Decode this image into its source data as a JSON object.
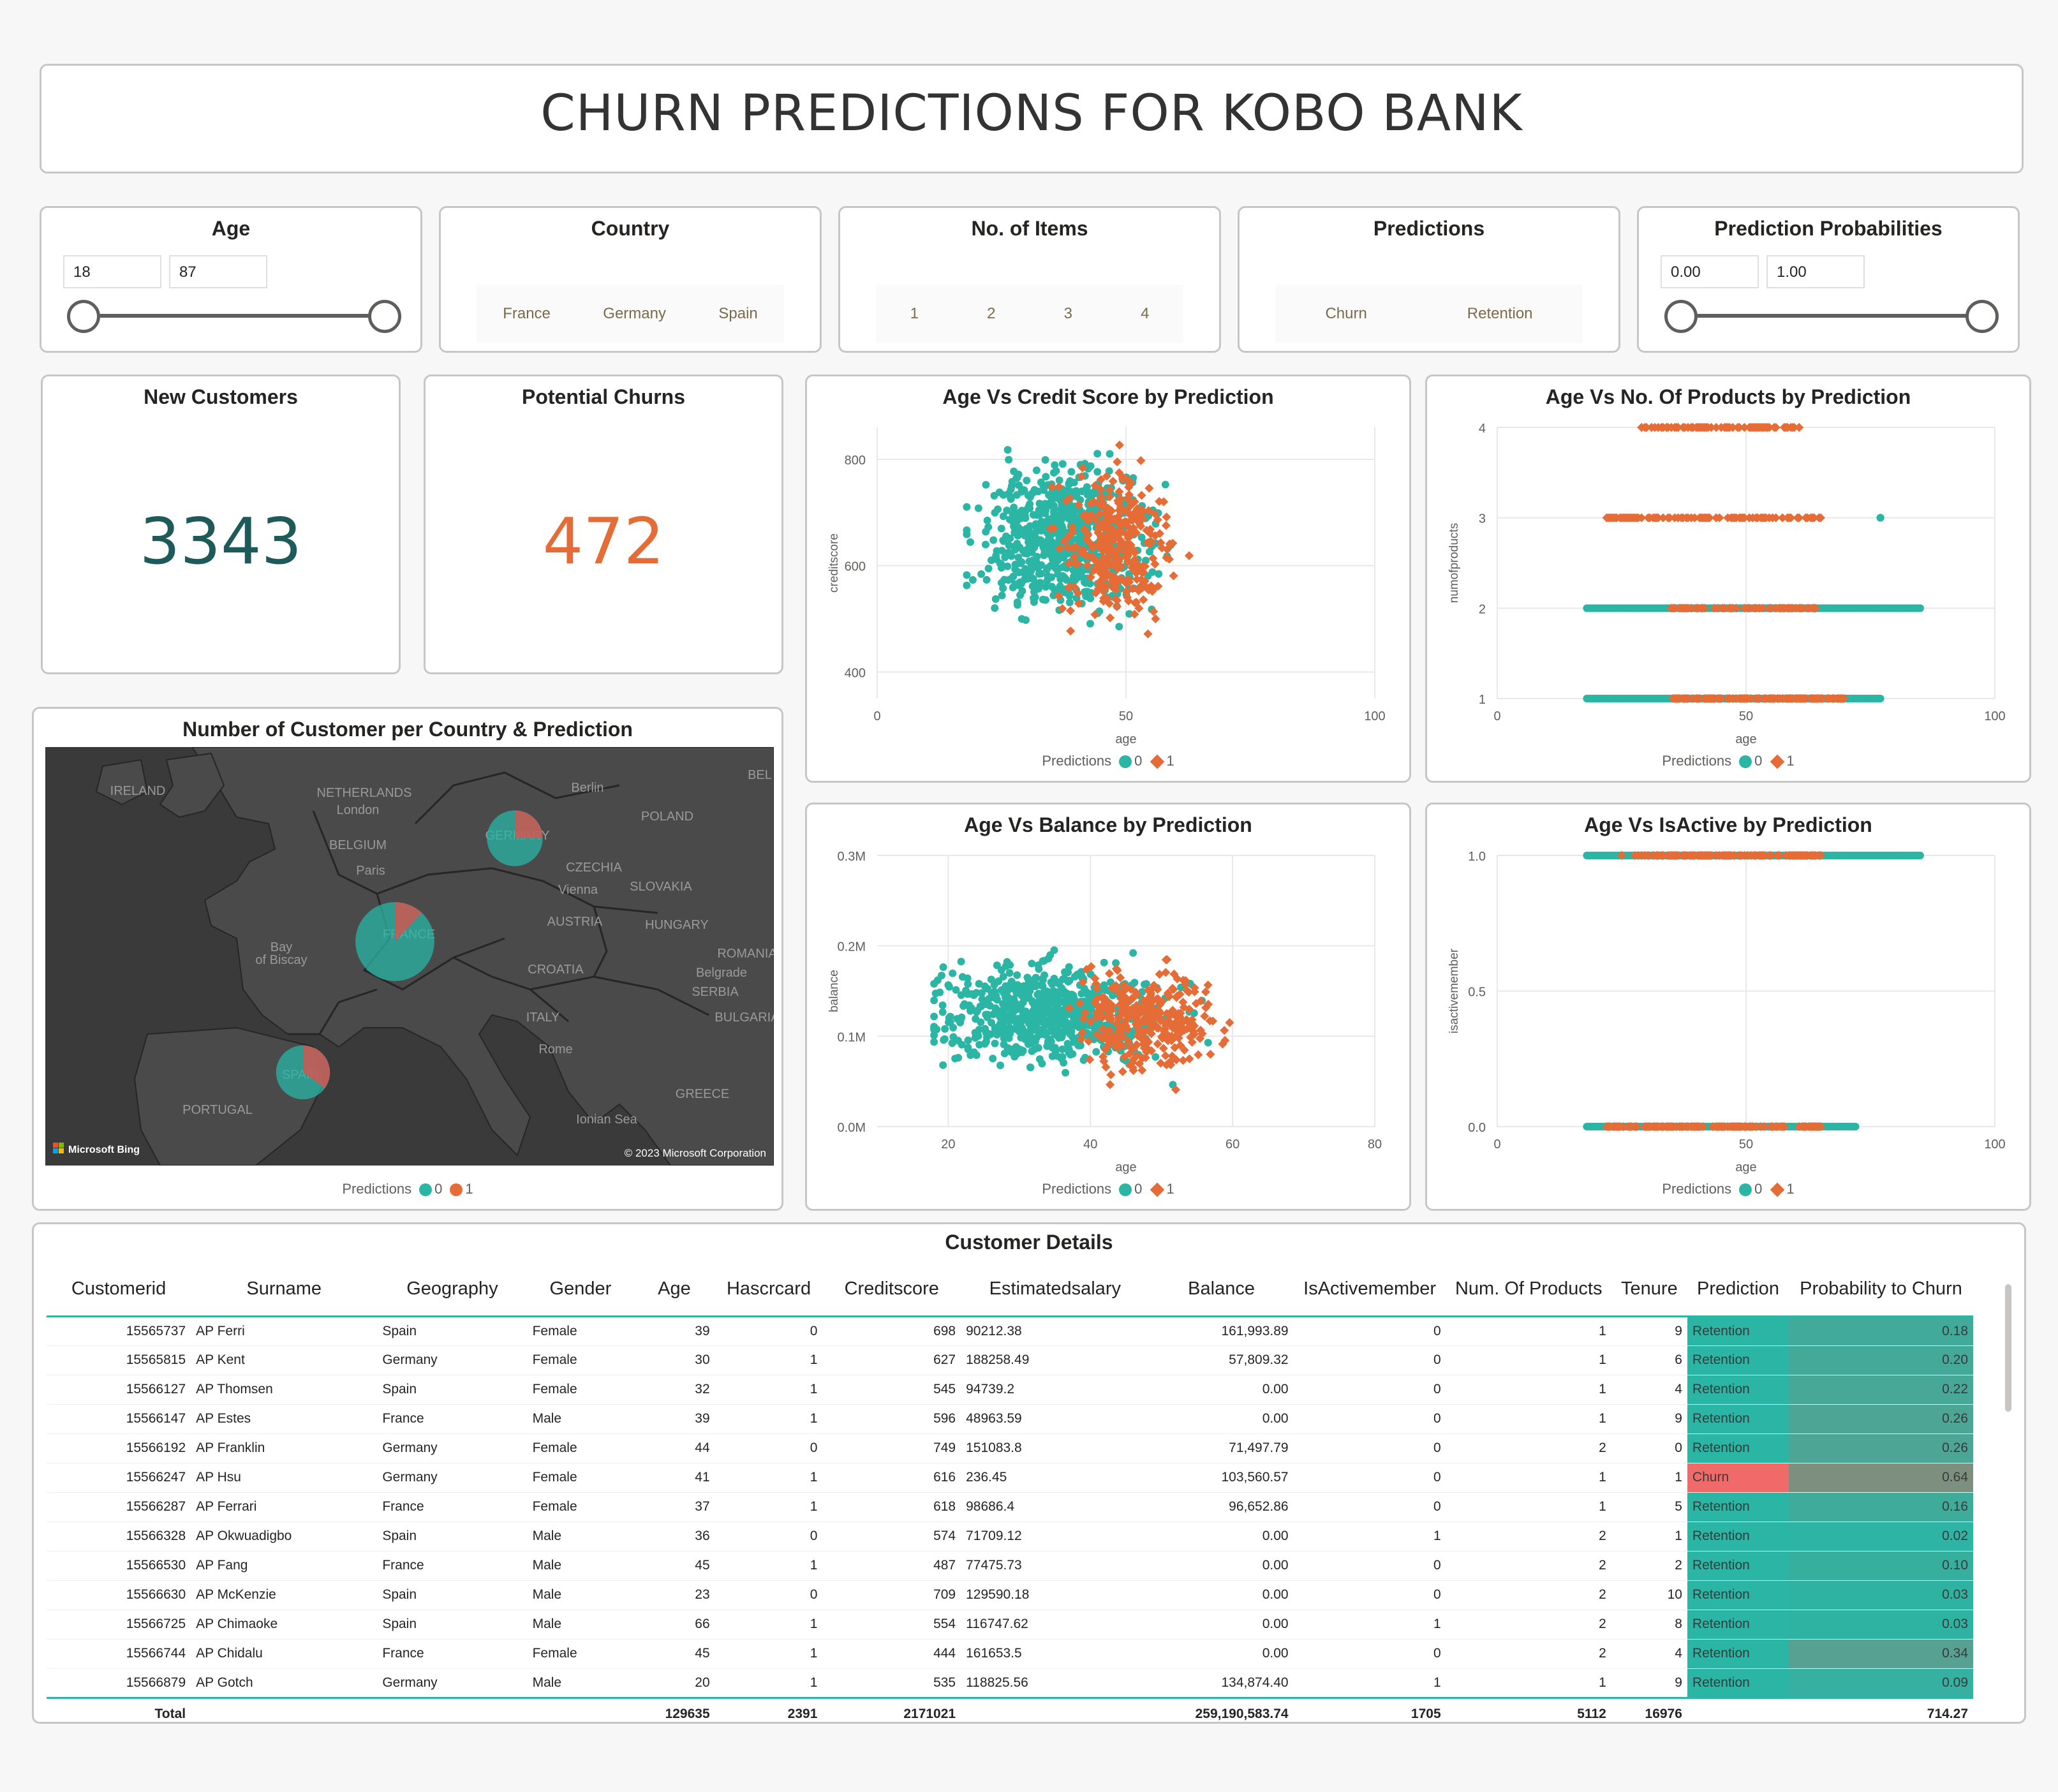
{
  "title": "CHURN PREDICTIONS FOR KOBO BANK",
  "colors": {
    "retention": "#2ab5a5",
    "churn": "#e66c37",
    "accent_dark": "#1f5a5a"
  },
  "slicers": {
    "age": {
      "title": "Age",
      "min": "18",
      "max": "87"
    },
    "country": {
      "title": "Country",
      "options": [
        "France",
        "Germany",
        "Spain"
      ]
    },
    "items": {
      "title": "No. of Items",
      "options": [
        "1",
        "2",
        "3",
        "4"
      ]
    },
    "predictions": {
      "title": "Predictions",
      "options": [
        "Churn",
        "Retention"
      ]
    },
    "probabilities": {
      "title": "Prediction Probabilities",
      "min": "0.00",
      "max": "1.00"
    }
  },
  "kpis": {
    "new_customers": {
      "title": "New Customers",
      "value": "3343"
    },
    "potential_churns": {
      "title": "Potential Churns",
      "value": "472"
    }
  },
  "legend": {
    "title": "Predictions",
    "items": [
      "0",
      "1"
    ]
  },
  "map": {
    "title": "Number of Customer per Country & Prediction",
    "labels": [
      "IRELAND",
      "NETHERLANDS",
      "Berlin",
      "London",
      "BELGIUM",
      "GERMANY",
      "POLAND",
      "Paris",
      "CZECHIA",
      "Vienna",
      "SLOVAKIA",
      "FRANCE",
      "AUSTRIA",
      "HUNGARY",
      "Bay",
      "of Biscay",
      "CROATIA",
      "ROMANIA",
      "Belgrade",
      "SERBIA",
      "ITALY",
      "BULGARIA",
      "Rome",
      "SPAIN",
      "PORTUGAL",
      "GREECE",
      "Ionian Sea",
      "BEL"
    ],
    "bubbles": [
      {
        "country": "France",
        "count": 1700,
        "churn_share": 0.12
      },
      {
        "country": "Germany",
        "count": 850,
        "churn_share": 0.25
      },
      {
        "country": "Spain",
        "count": 793,
        "churn_share": 0.35
      }
    ],
    "brand": "Microsoft Bing",
    "copyright": "© 2023 Microsoft Corporation"
  },
  "chart_data": [
    {
      "type": "scatter",
      "title": "Age Vs Credit Score by Prediction",
      "xlabel": "age",
      "ylabel": "creditscore",
      "xlim": [
        0,
        100
      ],
      "ylim": [
        350,
        860
      ],
      "xticks": [
        "0",
        "50",
        "100"
      ],
      "yticks": [
        "400",
        "600",
        "800"
      ],
      "ytick_values": [
        400,
        600,
        800
      ],
      "series": [
        {
          "name": "0",
          "clusters": [
            {
              "x": [
                18,
                80
              ],
              "y": [
                350,
                850
              ],
              "center": [
                38,
                650
              ],
              "n": 700
            }
          ]
        },
        {
          "name": "1",
          "clusters": [
            {
              "x": [
                30,
                70
              ],
              "y": [
                360,
                850
              ],
              "center": [
                48,
                640
              ],
              "n": 320
            }
          ]
        }
      ]
    },
    {
      "type": "scatter",
      "title": "Age Vs No. Of Products by Prediction",
      "xlabel": "age",
      "ylabel": "numofproducts",
      "xlim": [
        0,
        100
      ],
      "ylim": [
        1,
        4
      ],
      "xticks": [
        "0",
        "50",
        "100"
      ],
      "yticks": [
        "1",
        "2",
        "3",
        "4"
      ],
      "ytick_values": [
        1,
        2,
        3,
        4
      ],
      "series": [
        {
          "name": "0",
          "levels": [
            {
              "y": 1,
              "x": [
                18,
                77
              ]
            },
            {
              "y": 2,
              "x": [
                18,
                85
              ]
            },
            {
              "y": 3,
              "x": [
                77,
                77
              ]
            }
          ]
        },
        {
          "name": "1",
          "levels": [
            {
              "y": 1,
              "x": [
                35,
                70
              ]
            },
            {
              "y": 2,
              "x": [
                35,
                65
              ]
            },
            {
              "y": 3,
              "x": [
                22,
                65
              ]
            },
            {
              "y": 4,
              "x": [
                29,
                61
              ]
            }
          ]
        }
      ]
    },
    {
      "type": "scatter",
      "title": "Age Vs Balance by Prediction",
      "xlabel": "age",
      "ylabel": "balance",
      "xlim": [
        10,
        80
      ],
      "ylim": [
        0,
        0.3
      ],
      "xticks": [
        "20",
        "40",
        "60",
        "80"
      ],
      "xtick_values": [
        20,
        40,
        60,
        80
      ],
      "yticks": [
        "0.0M",
        "0.1M",
        "0.2M",
        "0.3M"
      ],
      "ytick_values": [
        0,
        0.1,
        0.2,
        0.3
      ],
      "series": [
        {
          "name": "0",
          "clusters": [
            {
              "x": [
                18,
                76
              ],
              "y": [
                0.02,
                0.22
              ],
              "center": [
                34,
                0.125
              ],
              "n": 700
            }
          ]
        },
        {
          "name": "1",
          "clusters": [
            {
              "x": [
                32,
                68
              ],
              "y": [
                0.03,
                0.25
              ],
              "center": [
                48,
                0.12
              ],
              "n": 320
            }
          ]
        }
      ]
    },
    {
      "type": "scatter",
      "title": "Age Vs IsActive by Prediction",
      "xlabel": "age",
      "ylabel": "isactivemember",
      "xlim": [
        0,
        100
      ],
      "ylim": [
        0,
        1
      ],
      "xticks": [
        "0",
        "50",
        "100"
      ],
      "yticks": [
        "0.0",
        "0.5",
        "1.0"
      ],
      "ytick_values": [
        0,
        0.5,
        1
      ],
      "series": [
        {
          "name": "0",
          "levels": [
            {
              "y": 1,
              "x": [
                18,
                85
              ]
            },
            {
              "y": 0,
              "x": [
                18,
                72
              ]
            }
          ]
        },
        {
          "name": "1",
          "levels": [
            {
              "y": 1,
              "x": [
                25,
                65
              ]
            },
            {
              "y": 0,
              "x": [
                22,
                65
              ]
            }
          ]
        }
      ]
    }
  ],
  "table": {
    "title": "Customer Details",
    "columns": [
      "Customerid",
      "Surname",
      "Geography",
      "Gender",
      "Age",
      "Hascrcard",
      "Creditscore",
      "Estimatedsalary",
      "Balance",
      "IsActivemember",
      "Num. Of Products",
      "Tenure",
      "Prediction",
      "Probability to Churn"
    ],
    "rows": [
      [
        "15565737",
        "AP Ferri",
        "Spain",
        "Female",
        "39",
        "0",
        "698",
        "90212.38",
        "161,993.89",
        "0",
        "1",
        "9",
        "Retention",
        "0.18"
      ],
      [
        "15565815",
        "AP Kent",
        "Germany",
        "Female",
        "30",
        "1",
        "627",
        "188258.49",
        "57,809.32",
        "0",
        "1",
        "6",
        "Retention",
        "0.20"
      ],
      [
        "15566127",
        "AP Thomsen",
        "Spain",
        "Female",
        "32",
        "1",
        "545",
        "94739.2",
        "0.00",
        "0",
        "1",
        "4",
        "Retention",
        "0.22"
      ],
      [
        "15566147",
        "AP Estes",
        "France",
        "Male",
        "39",
        "1",
        "596",
        "48963.59",
        "0.00",
        "0",
        "1",
        "9",
        "Retention",
        "0.26"
      ],
      [
        "15566192",
        "AP Franklin",
        "Germany",
        "Female",
        "44",
        "0",
        "749",
        "151083.8",
        "71,497.79",
        "0",
        "2",
        "0",
        "Retention",
        "0.26"
      ],
      [
        "15566247",
        "AP Hsu",
        "Germany",
        "Female",
        "41",
        "1",
        "616",
        "236.45",
        "103,560.57",
        "0",
        "1",
        "1",
        "Churn",
        "0.64"
      ],
      [
        "15566287",
        "AP Ferrari",
        "France",
        "Female",
        "37",
        "1",
        "618",
        "98686.4",
        "96,652.86",
        "0",
        "1",
        "5",
        "Retention",
        "0.16"
      ],
      [
        "15566328",
        "AP Okwuadigbo",
        "Spain",
        "Male",
        "36",
        "0",
        "574",
        "71709.12",
        "0.00",
        "1",
        "2",
        "1",
        "Retention",
        "0.02"
      ],
      [
        "15566530",
        "AP Fang",
        "France",
        "Male",
        "45",
        "1",
        "487",
        "77475.73",
        "0.00",
        "0",
        "2",
        "2",
        "Retention",
        "0.10"
      ],
      [
        "15566630",
        "AP McKenzie",
        "Spain",
        "Male",
        "23",
        "0",
        "709",
        "129590.18",
        "0.00",
        "0",
        "2",
        "10",
        "Retention",
        "0.03"
      ],
      [
        "15566725",
        "AP Chimaoke",
        "Spain",
        "Male",
        "66",
        "1",
        "554",
        "116747.62",
        "0.00",
        "1",
        "2",
        "8",
        "Retention",
        "0.03"
      ],
      [
        "15566744",
        "AP Chidalu",
        "France",
        "Female",
        "45",
        "1",
        "444",
        "161653.5",
        "0.00",
        "0",
        "2",
        "4",
        "Retention",
        "0.34"
      ],
      [
        "15566879",
        "AP Gotch",
        "Germany",
        "Male",
        "20",
        "1",
        "535",
        "118825.56",
        "134,874.40",
        "1",
        "1",
        "9",
        "Retention",
        "0.09"
      ]
    ],
    "total": [
      "Total",
      "",
      "",
      "",
      "129635",
      "2391",
      "2171021",
      "",
      "259,190,583.74",
      "1705",
      "5112",
      "16976",
      "",
      "714.27"
    ]
  }
}
